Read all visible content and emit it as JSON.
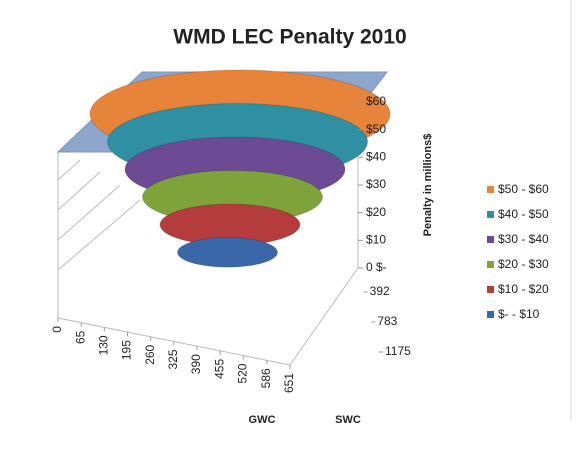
{
  "chart_data": {
    "type": "surface",
    "title": "WMD LEC Penalty 2010",
    "x_label": "GWC",
    "y_label": "SWC",
    "z_label": "Penalty in millions$",
    "xlim": [
      0,
      651
    ],
    "xticks": [
      0,
      65,
      130,
      195,
      260,
      325,
      390,
      455,
      520,
      586,
      651
    ],
    "ylim": [
      0,
      1175
    ],
    "yticks": [
      392,
      783,
      1175
    ],
    "zlim": [
      0,
      60
    ],
    "zticks": [
      {
        "value": 0,
        "label": "0 $-"
      },
      {
        "value": 10,
        "label": "$10"
      },
      {
        "value": 20,
        "label": "$20"
      },
      {
        "value": 30,
        "label": "$30"
      },
      {
        "value": 40,
        "label": "$40"
      },
      {
        "value": 50,
        "label": "$50"
      },
      {
        "value": 60,
        "label": "$60"
      }
    ],
    "series": [
      {
        "name": "$50 - $60",
        "color": "#e8833a"
      },
      {
        "name": "$40 - $50",
        "color": "#2f8fa3"
      },
      {
        "name": "$30 - $40",
        "color": "#6d4a94"
      },
      {
        "name": "$20 - $30",
        "color": "#7ea33a"
      },
      {
        "name": "$10 - $20",
        "color": "#b43c3c"
      },
      {
        "name": "$- - $10",
        "color": "#3a67a8"
      }
    ]
  }
}
